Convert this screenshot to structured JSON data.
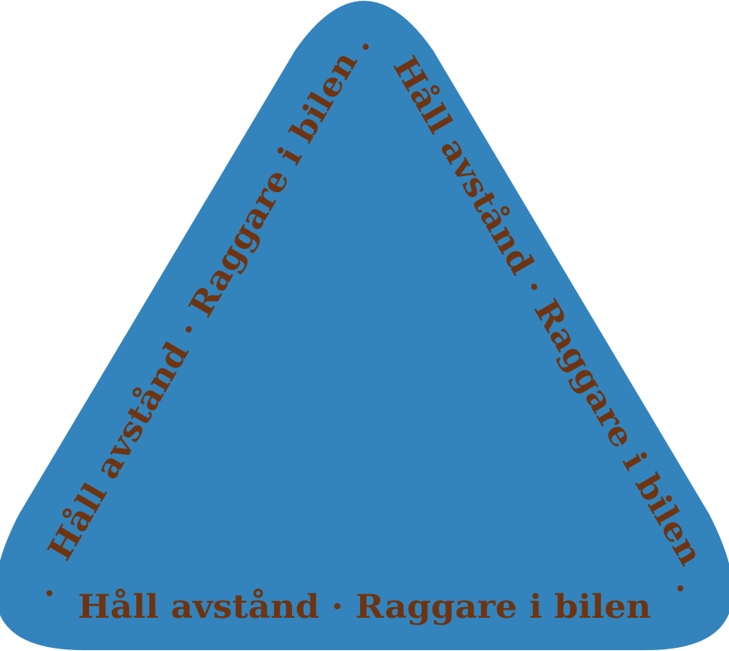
{
  "sign": {
    "text_left": "Håll avstånd · Raggare i bilen",
    "text_right": "Håll avstånd · Raggare i bilen",
    "text_bottom": "Håll avstånd · Raggare i bilen",
    "dot": "·",
    "colors": {
      "fill": "#3384bc",
      "text": "#6e3412"
    }
  }
}
